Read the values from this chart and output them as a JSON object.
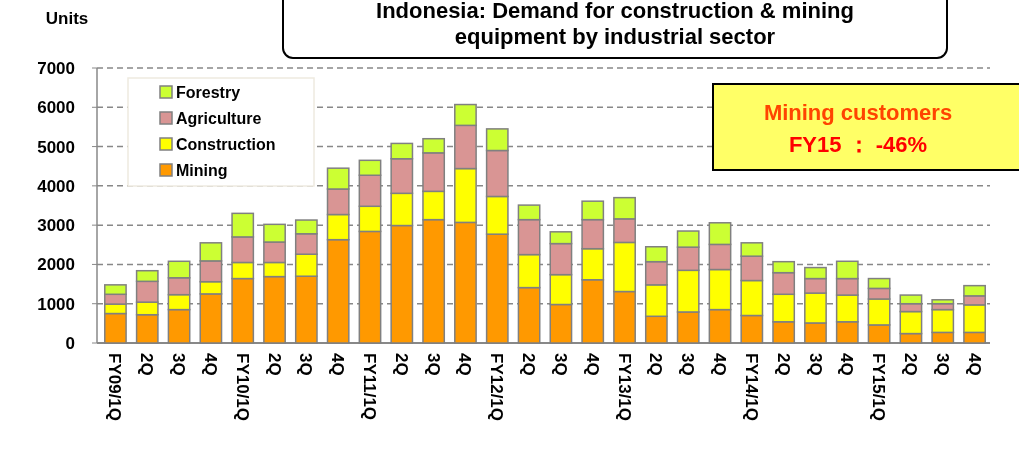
{
  "chart_data": {
    "type": "bar",
    "stacked": true,
    "title": "Indonesia: Demand for construction & mining\nequipment by industrial sector",
    "ylabel": "Units",
    "categories": [
      "FY09/1Q",
      "2Q",
      "3Q",
      "4Q",
      "FY10/1Q",
      "2Q",
      "3Q",
      "4Q",
      "FY11/1Q",
      "2Q",
      "3Q",
      "4Q",
      "FY12/1Q",
      "2Q",
      "3Q",
      "4Q",
      "FY13/1Q",
      "2Q",
      "3Q",
      "4Q",
      "FY14/1Q",
      "2Q",
      "3Q",
      "4Q",
      "FY15/1Q",
      "2Q",
      "3Q",
      "4Q"
    ],
    "series": [
      {
        "name": "Mining",
        "color": "#ff9900",
        "values": [
          750,
          720,
          850,
          1250,
          1640,
          1690,
          1700,
          2630,
          2840,
          2990,
          3140,
          3070,
          2770,
          1410,
          980,
          1610,
          1310,
          680,
          790,
          850,
          700,
          540,
          510,
          540,
          460,
          240,
          270,
          270
        ]
      },
      {
        "name": "Construction",
        "color": "#ffff00",
        "values": [
          240,
          320,
          380,
          310,
          410,
          360,
          560,
          640,
          640,
          820,
          720,
          1370,
          960,
          840,
          760,
          790,
          1250,
          800,
          1060,
          1020,
          890,
          700,
          760,
          680,
          660,
          560,
          580,
          700
        ]
      },
      {
        "name": "Agriculture",
        "color": "#d99594",
        "values": [
          250,
          530,
          430,
          530,
          650,
          520,
          520,
          650,
          790,
          880,
          980,
          1100,
          1170,
          890,
          790,
          740,
          600,
          590,
          590,
          640,
          620,
          550,
          370,
          420,
          270,
          200,
          150,
          230
        ]
      },
      {
        "name": "Forestry",
        "color": "#ccff33",
        "values": [
          240,
          270,
          420,
          460,
          600,
          450,
          350,
          530,
          380,
          390,
          360,
          530,
          550,
          370,
          300,
          470,
          540,
          380,
          410,
          550,
          340,
          280,
          280,
          440,
          250,
          220,
          100,
          260
        ]
      }
    ],
    "ylim": [
      0,
      7000
    ],
    "yticks": [
      0,
      1000,
      2000,
      3000,
      4000,
      5000,
      6000,
      7000
    ],
    "grid": "y",
    "legend": "top left",
    "annotations": [
      "Mining customers\nFY15 ： -46%"
    ]
  }
}
